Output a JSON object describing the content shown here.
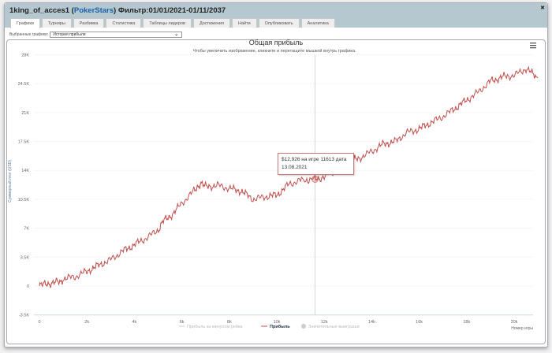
{
  "window": {
    "player": "1king_of_acces1",
    "room": "PokerStars",
    "filter": "Фильтр:01/01/2021-01/11/2037"
  },
  "tabs": [
    "Графики",
    "Турниры",
    "Разбивка",
    "Статистика",
    "Таблицы лидеров",
    "Достижения",
    "Найти",
    "Опубликовать",
    "Аналитика"
  ],
  "selector": {
    "label": "Выбранные графики:",
    "value": "История прибыли"
  },
  "tooltip": {
    "line1": "$12,926 на игре 11613 дата",
    "line2": "13.08.2021"
  },
  "colors": {
    "line": "#c0504d",
    "header": "#b5c7cf"
  },
  "chart_data": {
    "type": "line",
    "title": "Общая прибыль",
    "subtitle": "Чтобы увеличить изображение, кликните и перетащите мышкой внутрь графика.",
    "xlabel": "Номер игры",
    "ylabel": "Суммарный итог (USD)",
    "xlim": [
      0,
      21000
    ],
    "ylim": [
      -3500,
      28000
    ],
    "xticks": [
      "0",
      "2k",
      "4k",
      "6k",
      "8k",
      "10k",
      "12k",
      "14k",
      "16k",
      "18k",
      "20k"
    ],
    "yticks": [
      "28K",
      "24.5K",
      "21K",
      "17.5K",
      "14K",
      "10.5K",
      "7K",
      "3.5K",
      "0",
      "-3.5K"
    ],
    "legend": [
      "Прибыль за минусом рейка",
      "Прибыль",
      "Значительные выигрыши"
    ],
    "legend_placement": "bottom",
    "series": [
      {
        "name": "Прибыль",
        "x": [
          0,
          300,
          600,
          900,
          1000,
          1500,
          2000,
          2500,
          3000,
          3500,
          4000,
          4500,
          5000,
          5200,
          5500,
          6000,
          6500,
          6800,
          7000,
          7500,
          8000,
          8500,
          9000,
          9500,
          10000,
          10500,
          11000,
          11613,
          12000,
          12500,
          13000,
          13500,
          14000,
          14500,
          15000,
          15500,
          16000,
          16500,
          17000,
          17500,
          18000,
          18500,
          19000,
          19500,
          20000,
          20500,
          21000
        ],
        "y": [
          0,
          300,
          400,
          500,
          900,
          1100,
          1800,
          2500,
          3200,
          4200,
          5000,
          5800,
          6800,
          7800,
          8400,
          10000,
          11500,
          12500,
          12000,
          12200,
          11800,
          11500,
          10500,
          10800,
          11000,
          12300,
          12800,
          12926,
          13200,
          14000,
          15000,
          15500,
          16300,
          17200,
          17500,
          18600,
          19000,
          19800,
          20500,
          21500,
          22500,
          23500,
          24800,
          25300,
          25500,
          26300,
          25200
        ]
      }
    ],
    "crosshair_x": 11613
  }
}
